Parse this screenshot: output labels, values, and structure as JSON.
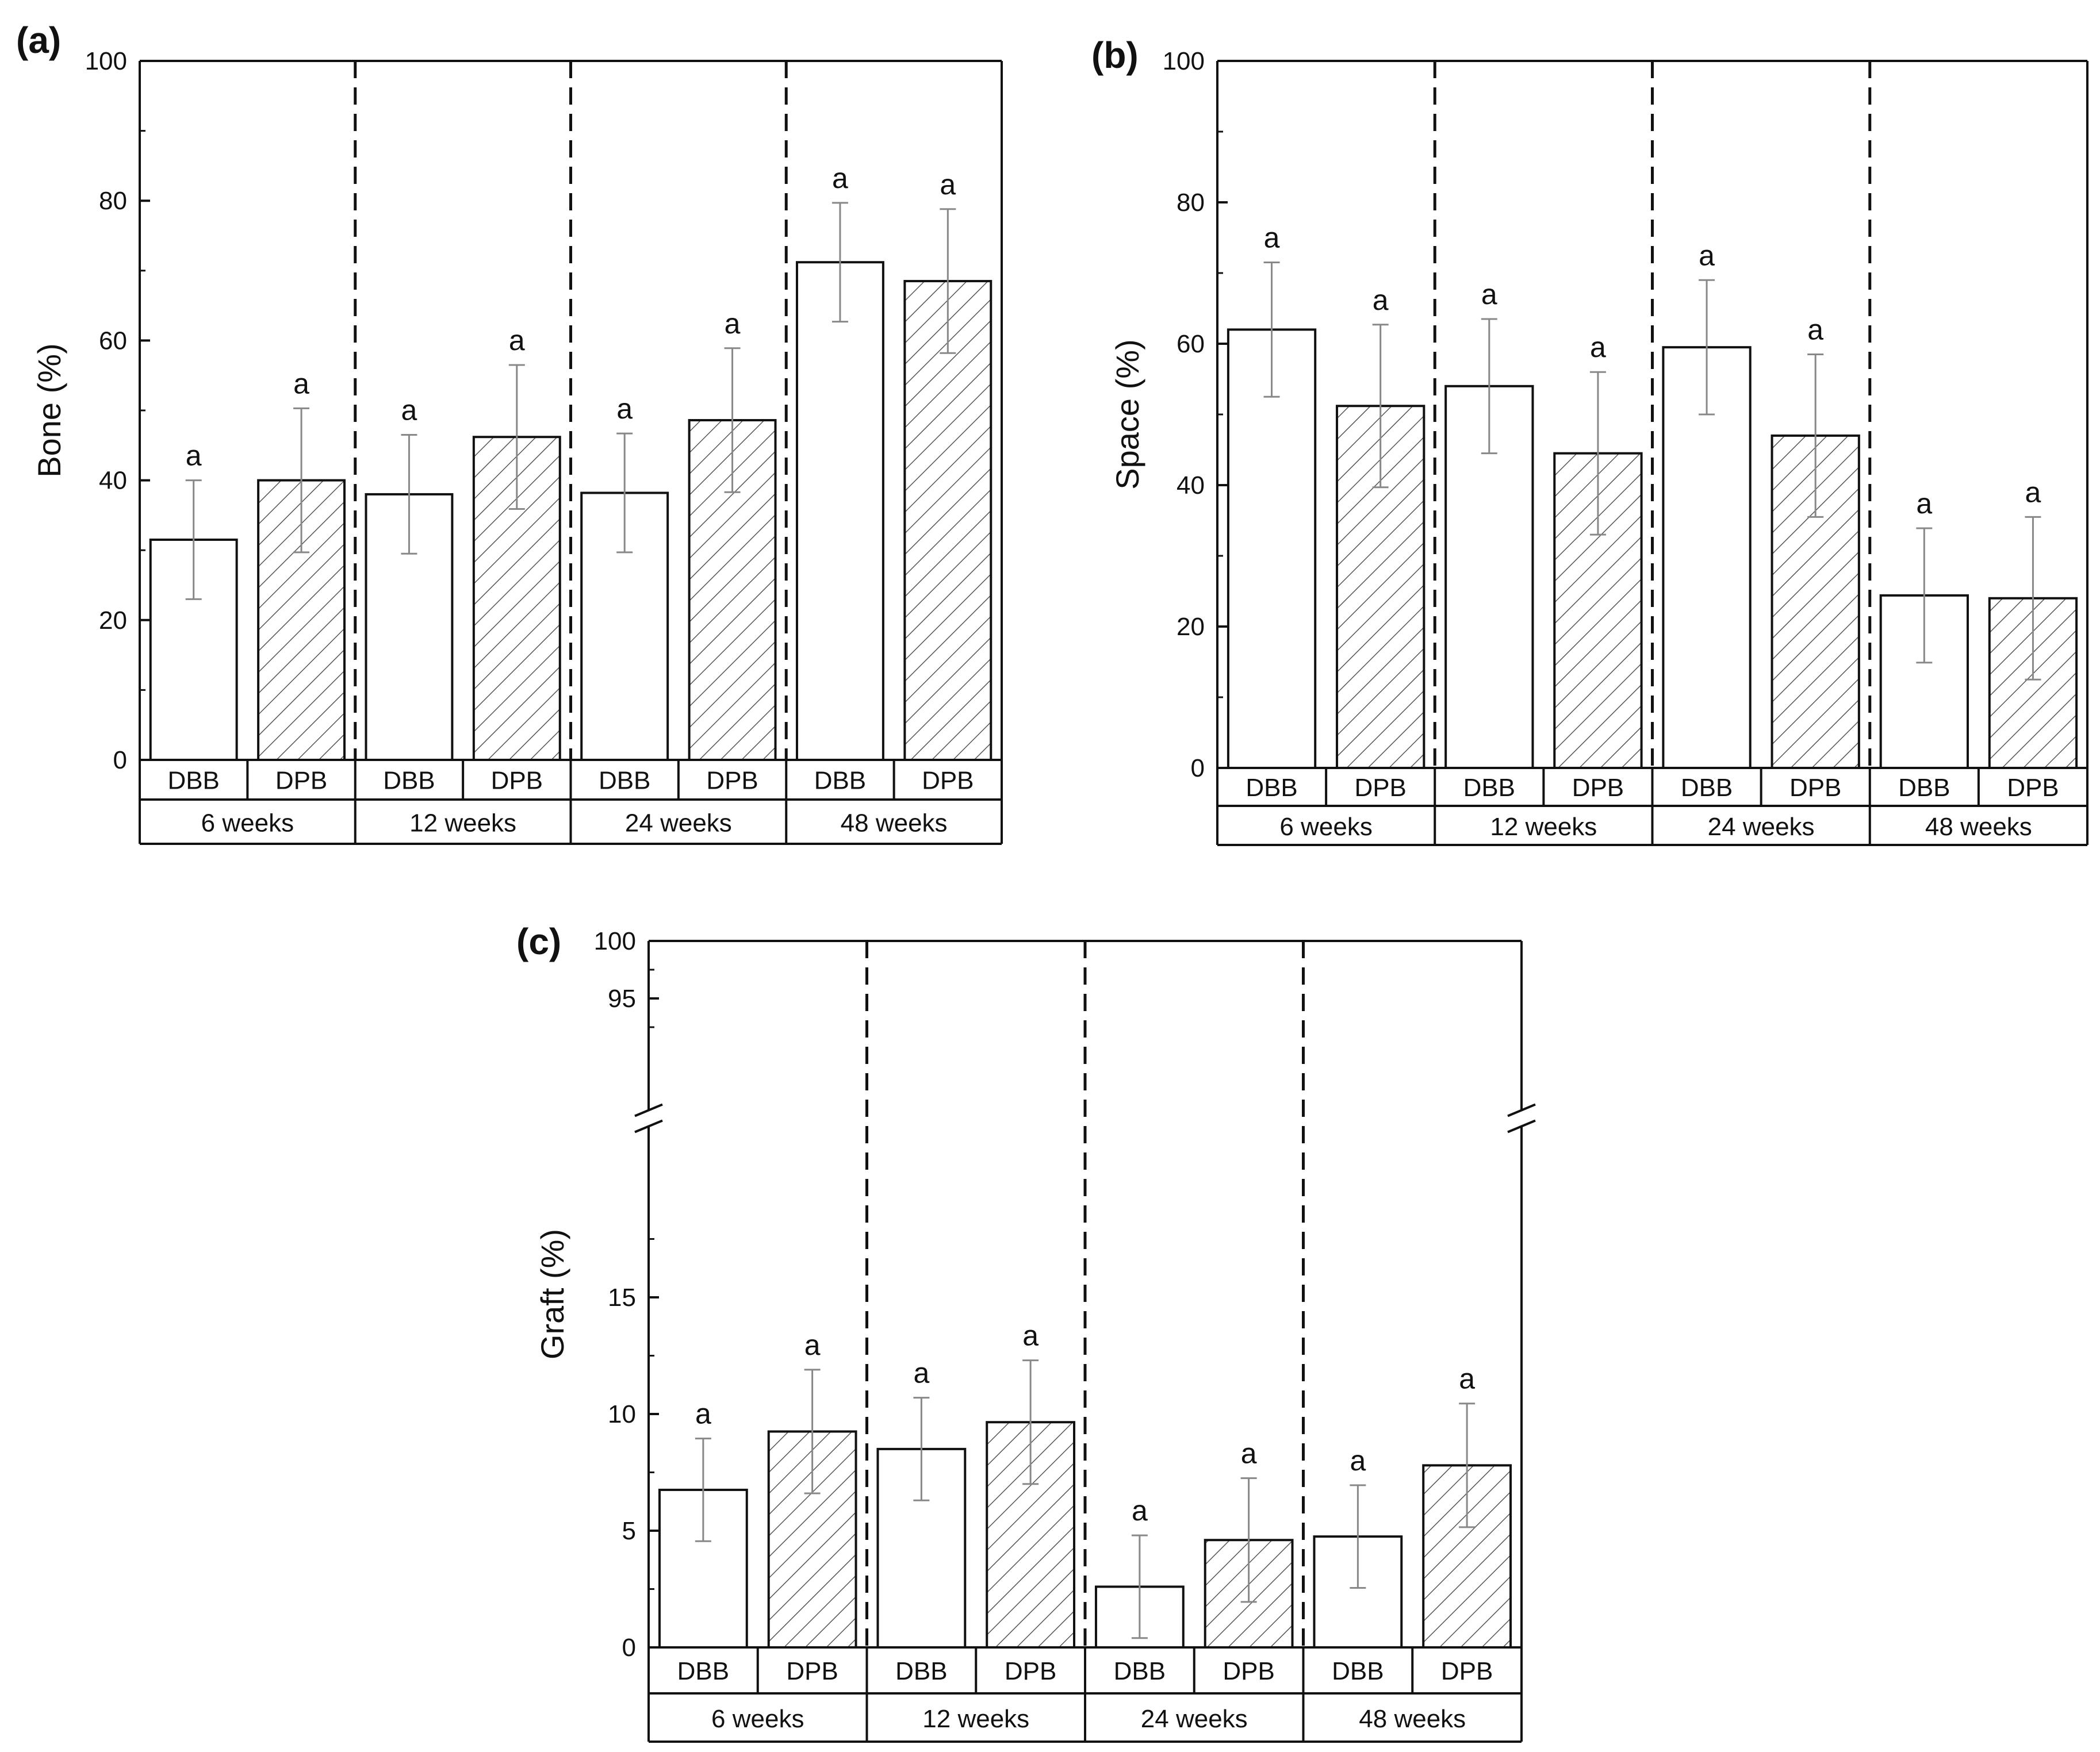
{
  "colors": {
    "axis": "#111111",
    "errorbar": "#888888",
    "fill": "#ffffff",
    "hatch": "#555555"
  },
  "chart_data": [
    {
      "type": "bar",
      "panel": "(a)",
      "ylabel": "Bone (%)",
      "xlabel": "",
      "ylim": [
        0,
        100
      ],
      "yticks": [
        "0",
        "20",
        "40",
        "60",
        "80",
        "100"
      ],
      "groups": [
        "6 weeks",
        "12 weeks",
        "24 weeks",
        "48 weeks"
      ],
      "series": [
        {
          "name": "DBB",
          "pattern": "open",
          "values": [
            31.5,
            38,
            38.2,
            71.2
          ],
          "errors": [
            8.5,
            8.5,
            8.5,
            8.5
          ],
          "labels": [
            "a",
            "a",
            "a",
            "a"
          ]
        },
        {
          "name": "DPB",
          "pattern": "hatched",
          "values": [
            40,
            46.2,
            48.6,
            68.5
          ],
          "errors": [
            10.3,
            10.3,
            10.3,
            10.3
          ],
          "labels": [
            "a",
            "a",
            "a",
            "a"
          ]
        }
      ]
    },
    {
      "type": "bar",
      "panel": "(b)",
      "ylabel": "Space (%)",
      "xlabel": "",
      "ylim": [
        0,
        100
      ],
      "yticks": [
        "0",
        "20",
        "40",
        "60",
        "80",
        "100"
      ],
      "groups": [
        "6 weeks",
        "12 weeks",
        "24 weeks",
        "48 weeks"
      ],
      "series": [
        {
          "name": "DBB",
          "pattern": "open",
          "values": [
            62,
            54,
            59.5,
            24.4
          ],
          "errors": [
            9.5,
            9.5,
            9.5,
            9.5
          ],
          "labels": [
            "a",
            "a",
            "a",
            "a"
          ]
        },
        {
          "name": "DPB",
          "pattern": "hatched",
          "values": [
            51.2,
            44.5,
            47,
            24
          ],
          "errors": [
            11.5,
            11.5,
            11.5,
            11.5
          ],
          "labels": [
            "a",
            "a",
            "a",
            "a"
          ]
        }
      ]
    },
    {
      "type": "bar",
      "panel": "(c)",
      "ylabel": "Graft (%)",
      "xlabel": "",
      "ylim": [
        0,
        100
      ],
      "axis_break": [
        20,
        90
      ],
      "yticks": [
        "0",
        "5",
        "10",
        "15",
        "95",
        "100"
      ],
      "groups": [
        "6 weeks",
        "12 weeks",
        "24 weeks",
        "48 weeks"
      ],
      "series": [
        {
          "name": "DBB",
          "pattern": "open",
          "values": [
            6.75,
            8.5,
            2.6,
            4.75
          ],
          "errors": [
            2.2,
            2.2,
            2.2,
            2.2
          ],
          "labels": [
            "a",
            "a",
            "a",
            "a"
          ]
        },
        {
          "name": "DPB",
          "pattern": "hatched",
          "values": [
            9.25,
            9.65,
            4.6,
            7.8
          ],
          "errors": [
            2.65,
            2.65,
            2.65,
            2.65
          ],
          "labels": [
            "a",
            "a",
            "a",
            "a"
          ]
        }
      ]
    }
  ]
}
